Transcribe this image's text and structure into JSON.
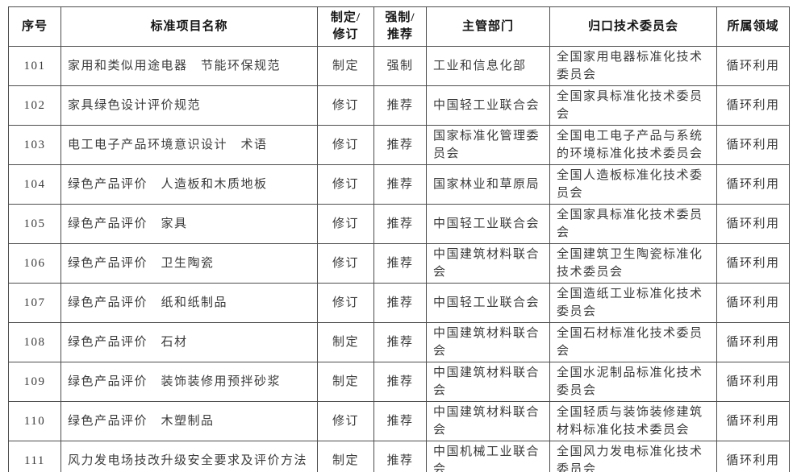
{
  "colors": {
    "background": "#ffffff",
    "border": "#4d4d4d",
    "body_text": "#3b3b3b",
    "header_text": "#151515"
  },
  "table": {
    "columns": [
      {
        "key": "index",
        "label": "序号"
      },
      {
        "key": "name",
        "label": "标准项目名称"
      },
      {
        "key": "action",
        "label": "制定/\n修订"
      },
      {
        "key": "mandate",
        "label": "强制/\n推荐"
      },
      {
        "key": "department",
        "label": "主管部门"
      },
      {
        "key": "committee",
        "label": "归口技术委员会"
      },
      {
        "key": "field",
        "label": "所属领域"
      }
    ],
    "rows": [
      [
        "101",
        "家用和类似用途电器　节能环保规范",
        "制定",
        "强制",
        "工业和信息化部",
        "全国家用电器标准化技术委员会",
        "循环利用"
      ],
      [
        "102",
        "家具绿色设计评价规范",
        "修订",
        "推荐",
        "中国轻工业联合会",
        "全国家具标准化技术委员会",
        "循环利用"
      ],
      [
        "103",
        "电工电子产品环境意识设计　术语",
        "修订",
        "推荐",
        "国家标准化管理委员会",
        "全国电工电子产品与系统的环境标准化技术委员会",
        "循环利用"
      ],
      [
        "104",
        "绿色产品评价　人造板和木质地板",
        "修订",
        "推荐",
        "国家林业和草原局",
        "全国人造板标准化技术委员会",
        "循环利用"
      ],
      [
        "105",
        "绿色产品评价　家具",
        "修订",
        "推荐",
        "中国轻工业联合会",
        "全国家具标准化技术委员会",
        "循环利用"
      ],
      [
        "106",
        "绿色产品评价　卫生陶瓷",
        "修订",
        "推荐",
        "中国建筑材料联合会",
        "全国建筑卫生陶瓷标准化技术委员会",
        "循环利用"
      ],
      [
        "107",
        "绿色产品评价　纸和纸制品",
        "修订",
        "推荐",
        "中国轻工业联合会",
        "全国造纸工业标准化技术委员会",
        "循环利用"
      ],
      [
        "108",
        "绿色产品评价　石材",
        "制定",
        "推荐",
        "中国建筑材料联合会",
        "全国石材标准化技术委员会",
        "循环利用"
      ],
      [
        "109",
        "绿色产品评价　装饰装修用预拌砂浆",
        "制定",
        "推荐",
        "中国建筑材料联合会",
        "全国水泥制品标准化技术委员会",
        "循环利用"
      ],
      [
        "110",
        "绿色产品评价　木塑制品",
        "修订",
        "推荐",
        "中国建筑材料联合会",
        "全国轻质与装饰装修建筑材料标准化技术委员会",
        "循环利用"
      ],
      [
        "111",
        "风力发电场技改升级安全要求及评价方法",
        "制定",
        "推荐",
        "中国机械工业联合会",
        "全国风力发电标准化技术委员会",
        "循环利用"
      ]
    ]
  }
}
